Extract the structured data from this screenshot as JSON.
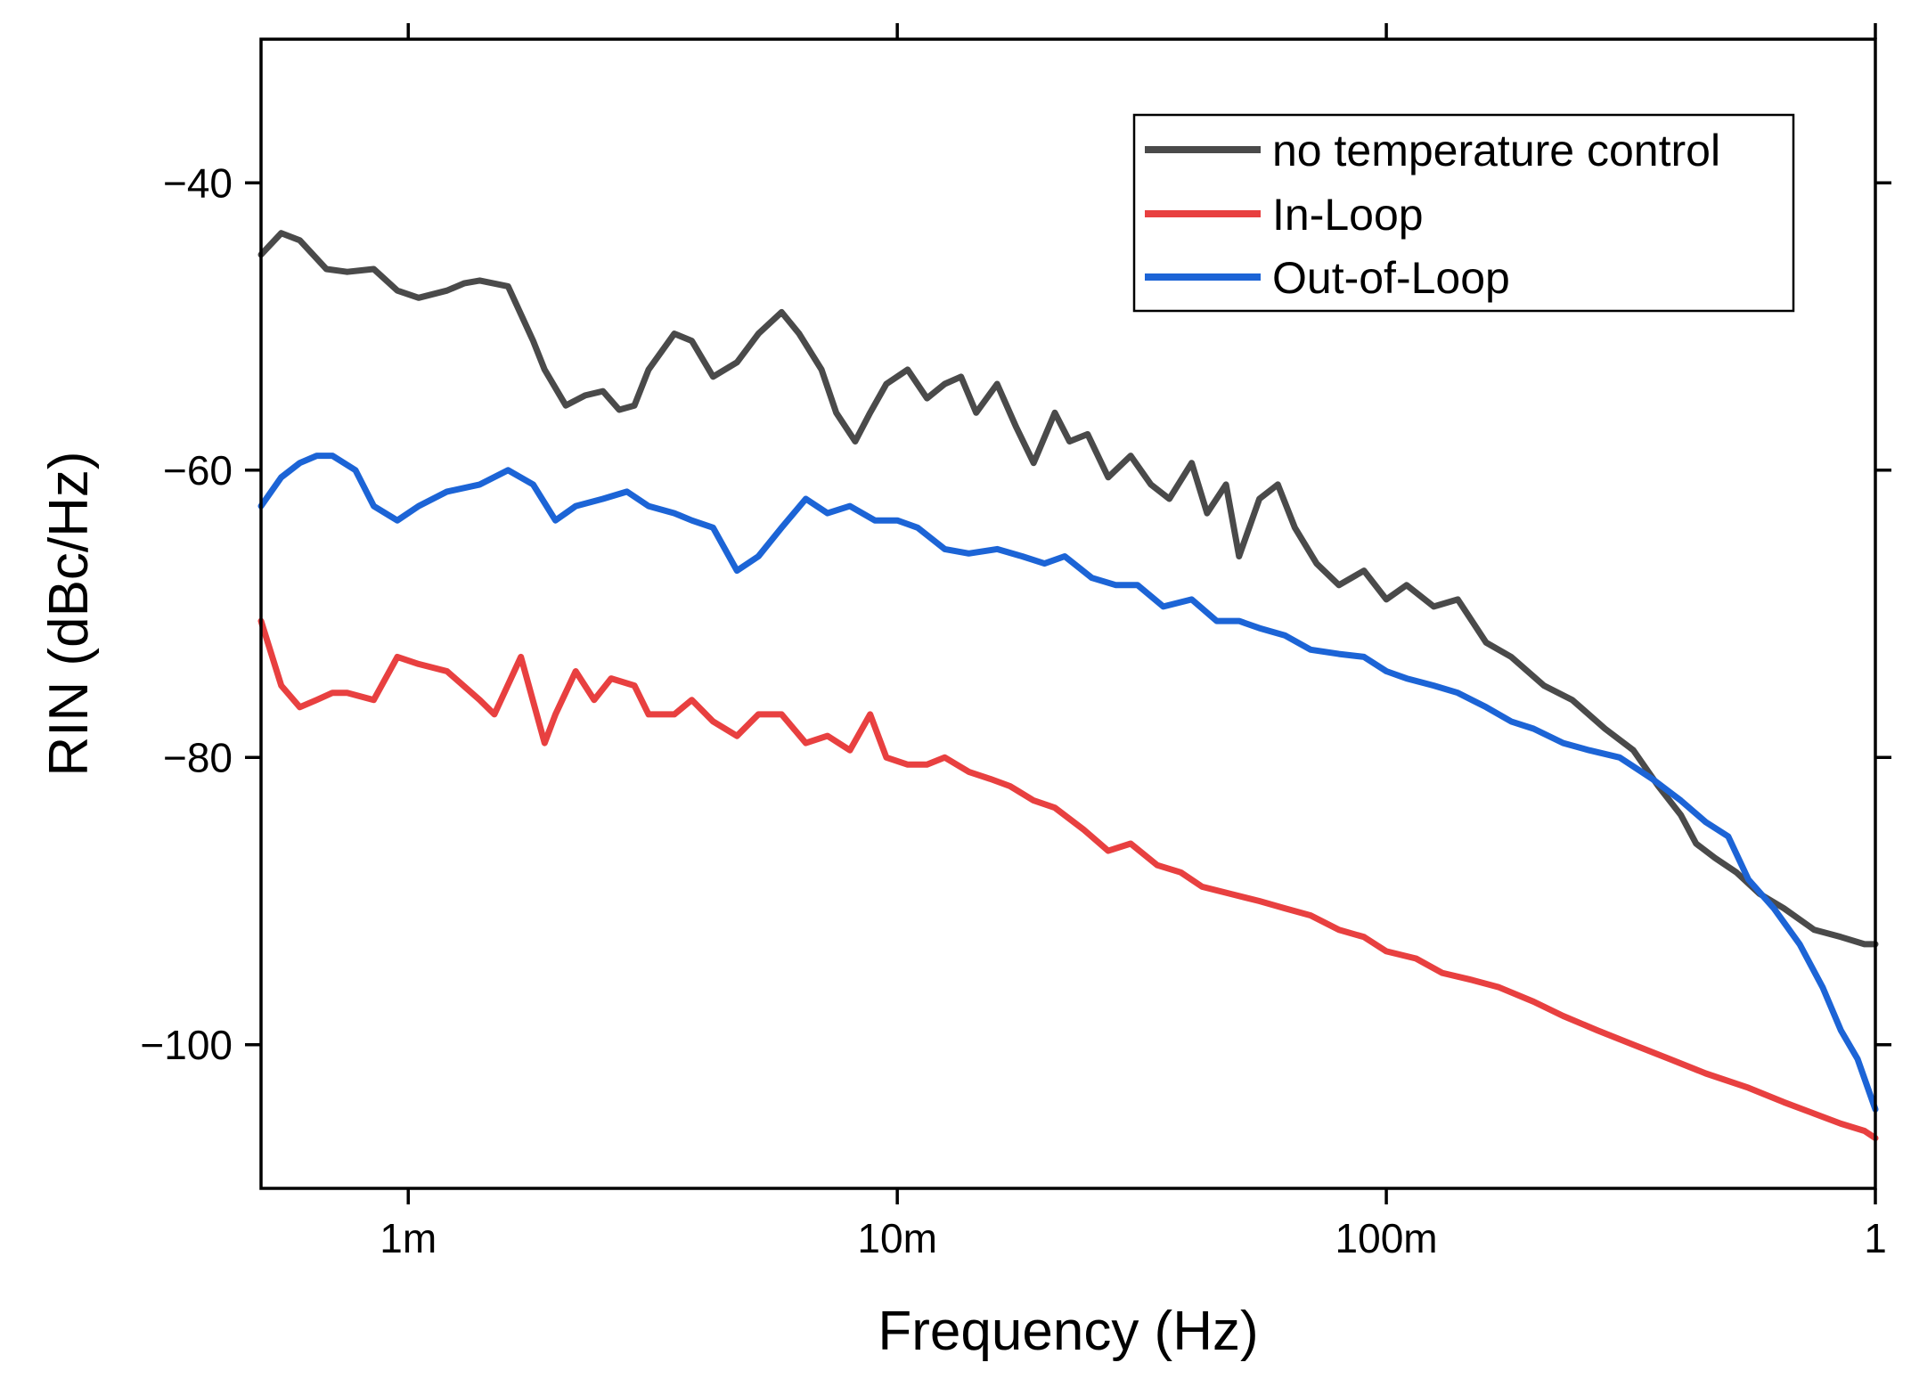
{
  "chart_data": {
    "type": "line",
    "title": "",
    "xlabel": "Frequency (Hz)",
    "ylabel": "RIN (dBc/Hz)",
    "xscale": "log",
    "xlim": [
      0.0005,
      1
    ],
    "ylim": [
      -110,
      -30
    ],
    "xticks": [
      {
        "value": 0.001,
        "label": "1m"
      },
      {
        "value": 0.01,
        "label": "10m"
      },
      {
        "value": 0.1,
        "label": "100m"
      },
      {
        "value": 1,
        "label": "1"
      }
    ],
    "yticks": [
      {
        "value": -40,
        "label": "−40"
      },
      {
        "value": -60,
        "label": "−60"
      },
      {
        "value": -80,
        "label": "−80"
      },
      {
        "value": -100,
        "label": "−100"
      }
    ],
    "legend_position": "top-right",
    "series": [
      {
        "name": "no temperature control",
        "color": "#4a4a4a",
        "x": [
          0.0005,
          0.00055,
          0.0006,
          0.00068,
          0.00075,
          0.00085,
          0.00095,
          0.00105,
          0.0012,
          0.0013,
          0.0014,
          0.0016,
          0.0018,
          0.0019,
          0.0021,
          0.0023,
          0.0025,
          0.0027,
          0.0029,
          0.0031,
          0.0035,
          0.0038,
          0.0042,
          0.0047,
          0.0052,
          0.0058,
          0.0063,
          0.007,
          0.0075,
          0.0082,
          0.0088,
          0.0095,
          0.0105,
          0.0115,
          0.0125,
          0.0135,
          0.0145,
          0.016,
          0.0175,
          0.019,
          0.021,
          0.0225,
          0.0245,
          0.027,
          0.03,
          0.033,
          0.036,
          0.04,
          0.043,
          0.047,
          0.05,
          0.055,
          0.06,
          0.065,
          0.072,
          0.08,
          0.09,
          0.1,
          0.11,
          0.125,
          0.14,
          0.16,
          0.18,
          0.21,
          0.24,
          0.28,
          0.32,
          0.36,
          0.4,
          0.43,
          0.47,
          0.52,
          0.58,
          0.65,
          0.75,
          0.85,
          0.95,
          1.0
        ],
        "y": [
          -45,
          -43.5,
          -44,
          -46,
          -46.2,
          -46,
          -47.5,
          -48,
          -47.5,
          -47,
          -46.8,
          -47.2,
          -51,
          -53,
          -55.5,
          -54.8,
          -54.5,
          -55.8,
          -55.5,
          -53,
          -50.5,
          -51,
          -53.5,
          -52.5,
          -50.5,
          -49,
          -50.5,
          -53,
          -56,
          -58,
          -56,
          -54,
          -53,
          -55,
          -54,
          -53.5,
          -56,
          -54,
          -57,
          -59.5,
          -56,
          -58,
          -57.5,
          -60.5,
          -59,
          -61,
          -62,
          -59.5,
          -63,
          -61,
          -66,
          -62,
          -61,
          -64,
          -66.5,
          -68,
          -67,
          -69,
          -68,
          -69.5,
          -69,
          -72,
          -73,
          -75,
          -76,
          -78,
          -79.5,
          -82,
          -84,
          -86,
          -87,
          -88,
          -89.5,
          -90.5,
          -92,
          -92.5,
          -93,
          -93
        ]
      },
      {
        "name": "In-Loop",
        "color": "#e84040",
        "x": [
          0.0005,
          0.00055,
          0.0006,
          0.00065,
          0.0007,
          0.00075,
          0.00085,
          0.00095,
          0.00105,
          0.0012,
          0.0014,
          0.0015,
          0.0017,
          0.0019,
          0.002,
          0.0022,
          0.0024,
          0.0026,
          0.0029,
          0.0031,
          0.0035,
          0.0038,
          0.0042,
          0.0047,
          0.0052,
          0.0058,
          0.0065,
          0.0072,
          0.008,
          0.0088,
          0.0095,
          0.0105,
          0.0115,
          0.0125,
          0.014,
          0.0155,
          0.017,
          0.019,
          0.021,
          0.024,
          0.027,
          0.03,
          0.034,
          0.038,
          0.042,
          0.048,
          0.055,
          0.062,
          0.07,
          0.08,
          0.09,
          0.1,
          0.115,
          0.13,
          0.15,
          0.17,
          0.2,
          0.23,
          0.27,
          0.32,
          0.38,
          0.45,
          0.55,
          0.65,
          0.75,
          0.85,
          0.95,
          1.0
        ],
        "y": [
          -70.5,
          -75,
          -76.5,
          -76,
          -75.5,
          -75.5,
          -76,
          -73,
          -73.5,
          -74,
          -76,
          -77,
          -73,
          -79,
          -77,
          -74,
          -76,
          -74.5,
          -75,
          -77,
          -77,
          -76,
          -77.5,
          -78.5,
          -77,
          -77,
          -79,
          -78.5,
          -79.5,
          -77,
          -80,
          -80.5,
          -80.5,
          -80,
          -81,
          -81.5,
          -82,
          -83,
          -83.5,
          -85,
          -86.5,
          -86,
          -87.5,
          -88,
          -89,
          -89.5,
          -90,
          -90.5,
          -91,
          -92,
          -92.5,
          -93.5,
          -94,
          -95,
          -95.5,
          -96,
          -97,
          -98,
          -99,
          -100,
          -101,
          -102,
          -103,
          -104,
          -104.8,
          -105.5,
          -106,
          -106.5
        ]
      },
      {
        "name": "Out-of-Loop",
        "color": "#1c64d6",
        "x": [
          0.0005,
          0.00055,
          0.0006,
          0.00065,
          0.0007,
          0.00078,
          0.00085,
          0.00095,
          0.00105,
          0.0012,
          0.0014,
          0.0016,
          0.0018,
          0.002,
          0.0022,
          0.0025,
          0.0028,
          0.0031,
          0.0035,
          0.0038,
          0.0042,
          0.0047,
          0.0052,
          0.0058,
          0.0065,
          0.0072,
          0.008,
          0.009,
          0.01,
          0.011,
          0.0125,
          0.014,
          0.016,
          0.018,
          0.02,
          0.022,
          0.025,
          0.028,
          0.031,
          0.035,
          0.04,
          0.045,
          0.05,
          0.055,
          0.062,
          0.07,
          0.08,
          0.09,
          0.1,
          0.11,
          0.125,
          0.14,
          0.16,
          0.18,
          0.2,
          0.23,
          0.26,
          0.3,
          0.35,
          0.4,
          0.45,
          0.5,
          0.55,
          0.62,
          0.7,
          0.78,
          0.85,
          0.92,
          1.0
        ],
        "y": [
          -62.5,
          -60.5,
          -59.5,
          -59,
          -59,
          -60,
          -62.5,
          -63.5,
          -62.5,
          -61.5,
          -61,
          -60,
          -61,
          -63.5,
          -62.5,
          -62,
          -61.5,
          -62.5,
          -63,
          -63.5,
          -64,
          -67,
          -66,
          -64,
          -62,
          -63,
          -62.5,
          -63.5,
          -63.5,
          -64,
          -65.5,
          -65.8,
          -65.5,
          -66,
          -66.5,
          -66,
          -67.5,
          -68,
          -68,
          -69.5,
          -69,
          -70.5,
          -70.5,
          -71,
          -71.5,
          -72.5,
          -72.8,
          -73,
          -74,
          -74.5,
          -75,
          -75.5,
          -76.5,
          -77.5,
          -78,
          -79,
          -79.5,
          -80,
          -81.5,
          -83,
          -84.5,
          -85.5,
          -88.5,
          -90.5,
          -93,
          -96,
          -99,
          -101,
          -104.5
        ]
      }
    ]
  }
}
